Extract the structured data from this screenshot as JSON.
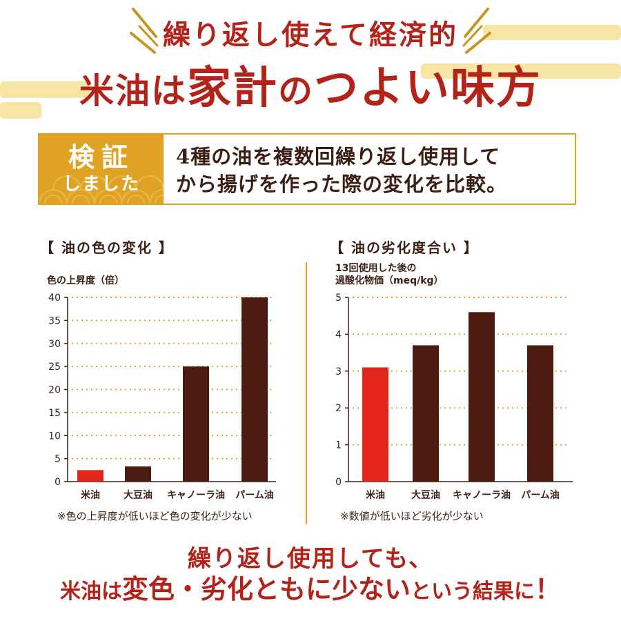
{
  "header": {
    "line1": "繰り返し使えて経済的",
    "line2_a": "米油は",
    "line2_b": "家計",
    "line2_c": "の",
    "line2_d": "つよい味方"
  },
  "verify": {
    "tag_big": "検証",
    "tag_small": "しました",
    "text_line1": "4種の油を複数回繰り返し使用して",
    "text_line2": "から揚げを作った際の変化を比較。"
  },
  "chart_data": [
    {
      "type": "bar",
      "title": "【 油の色の変化 】",
      "ylabel": "色の上昇度（倍）",
      "categories": [
        "米油",
        "大豆油",
        "キャノーラ油",
        "パーム油"
      ],
      "values": [
        2.5,
        3.3,
        25,
        40
      ],
      "colors": [
        "#e3251b",
        "#4b1a10",
        "#4b1a10",
        "#4b1a10"
      ],
      "ylim": [
        0,
        40
      ],
      "yticks": [
        0,
        5,
        10,
        15,
        20,
        25,
        30,
        35,
        40
      ],
      "grid": true,
      "note": "※色の上昇度が低いほど色の変化が少ない"
    },
    {
      "type": "bar",
      "title": "【 油の劣化度合い 】",
      "ylabel_line1": "13回使用した後の",
      "ylabel_line2": "過酸化物価（meq/kg）",
      "categories": [
        "米油",
        "大豆油",
        "キャノーラ油",
        "パーム油"
      ],
      "values": [
        3.1,
        3.7,
        4.6,
        3.7
      ],
      "colors": [
        "#e3251b",
        "#4b1a10",
        "#4b1a10",
        "#4b1a10"
      ],
      "ylim": [
        0,
        5
      ],
      "yticks": [
        0,
        1,
        2,
        3,
        4,
        5
      ],
      "grid": true,
      "note": "※数値が低いほど劣化が少ない"
    }
  ],
  "conclusion": {
    "line1": "繰り返し使用しても、",
    "line2_a": "米油は",
    "line2_b": "変色・劣化ともに少ない",
    "line2_c": "という結果に",
    "line2_d": "！"
  },
  "colors": {
    "accent_red": "#b4231a",
    "gold": "#e0a223",
    "bar_brown": "#4b1a10",
    "bar_red": "#e3251b"
  }
}
